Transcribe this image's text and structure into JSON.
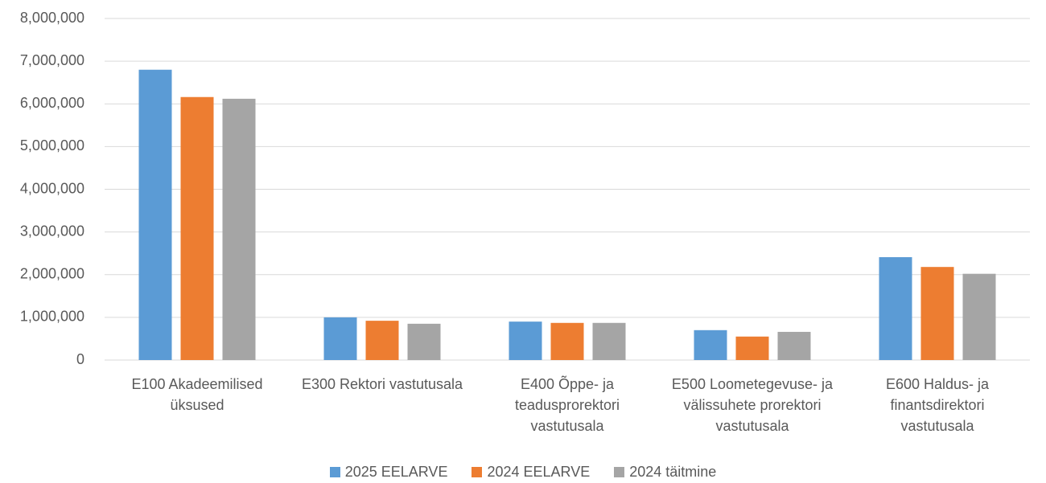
{
  "chart_data": {
    "type": "bar",
    "categories": [
      "E100 Akadeemilised üksused",
      "E300 Rektori vastutusala",
      "E400 Õppe- ja teadusprorektori vastutusala",
      "E500 Loometegevuse- ja välissuhete prorektori vastutusala",
      "E600 Haldus- ja finantsdirektori vastutusala"
    ],
    "series": [
      {
        "name": "2025 EELARVE",
        "color": "#5b9bd5",
        "values": [
          6800000,
          1000000,
          900000,
          700000,
          2410000
        ]
      },
      {
        "name": "2024 EELARVE",
        "color": "#ed7d31",
        "values": [
          6160000,
          920000,
          870000,
          550000,
          2180000
        ]
      },
      {
        "name": "2024 täitmine",
        "color": "#a5a5a5",
        "values": [
          6120000,
          850000,
          870000,
          660000,
          2020000
        ]
      }
    ],
    "ylim": [
      0,
      8000000
    ],
    "yticks": [
      0,
      {
        "value": 1000000,
        "label": "1,000,000"
      },
      {
        "value": 2000000,
        "label": "2,000,000"
      },
      {
        "value": 3000000,
        "label": "3,000,000"
      },
      {
        "value": 4000000,
        "label": "4,000,000"
      },
      {
        "value": 5000000,
        "label": "5,000,000"
      },
      {
        "value": 6000000,
        "label": "6,000,000"
      },
      {
        "value": 7000000,
        "label": "7,000,000"
      },
      {
        "value": 8000000,
        "label": "8,000,000"
      }
    ],
    "grid": true,
    "legend": "bottom"
  }
}
